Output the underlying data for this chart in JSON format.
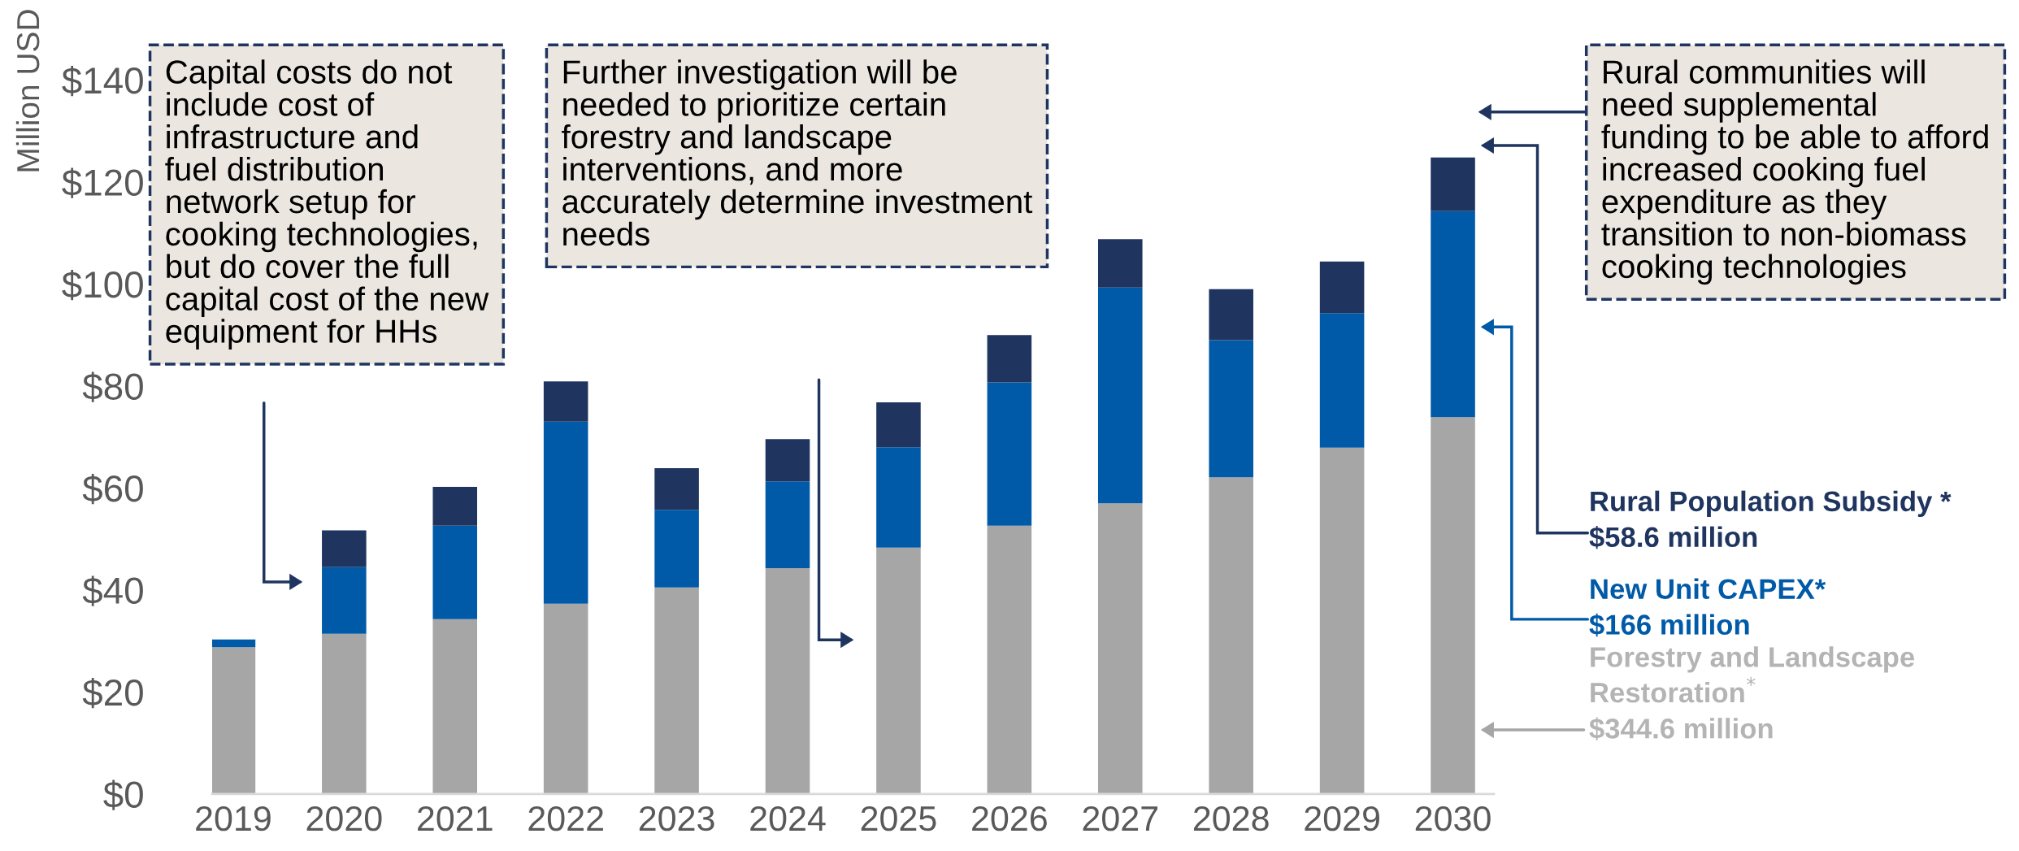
{
  "chart_data": {
    "type": "bar",
    "stacked": true,
    "ylabel": "Million USD",
    "categories": [
      "2019",
      "2020",
      "2021",
      "2022",
      "2023",
      "2024",
      "2025",
      "2026",
      "2027",
      "2028",
      "2029",
      "2030"
    ],
    "series": [
      {
        "name": "Forestry and Landscape\nRestoration$^{*}$\n$344.6 million",
        "color": "#a6a6a6",
        "values": [
          28.8,
          31.4,
          34.3,
          37.3,
          40.5,
          44.3,
          48.3,
          52.6,
          57.0,
          62.1,
          67.9,
          73.9
        ]
      },
      {
        "name": "New Unit CAPEX*\n$166 million",
        "color": "#005aa8",
        "values": [
          1.5,
          13.1,
          18.3,
          35.7,
          15.2,
          17.0,
          19.7,
          28.1,
          42.3,
          26.9,
          26.4,
          40.4
        ]
      },
      {
        "name": "Rural Population Subsidy *\n$58.6 million",
        "color": "#1f3560",
        "values": [
          0,
          7.2,
          7.6,
          7.9,
          8.2,
          8.3,
          8.8,
          9.3,
          9.5,
          10.0,
          10.1,
          10.5
        ]
      }
    ],
    "ylim": [
      0,
      140
    ],
    "yticks": [
      {
        "value": 0,
        "label": "$0"
      },
      {
        "value": 20,
        "label": "$20"
      },
      {
        "value": 40,
        "label": "$40"
      },
      {
        "value": 60,
        "label": "$60"
      },
      {
        "value": 80,
        "label": "$80"
      },
      {
        "value": 100,
        "label": "$100"
      },
      {
        "value": 120,
        "label": "$120"
      },
      {
        "value": 140,
        "label": "$140"
      }
    ],
    "grid": false,
    "legend": false,
    "annotations": [
      "Capital costs do not\ninclude cost of\ninfrastructure and\nfuel distribution\nnetwork setup for\ncooking technologies,\nbut do cover the full\ncapital cost of the new\nequipment for HHs",
      "Further investigation will be\nneeded to prioritize certain\nforestry and landscape\ninterventions, and more\naccurately determine investment\nneeds",
      "Rural communities will\nneed supplemental\nfunding to be able to afford\nincreased cooking fuel\nexpenditure as they\ntransition to non-biomass\ncooking technologies"
    ]
  }
}
